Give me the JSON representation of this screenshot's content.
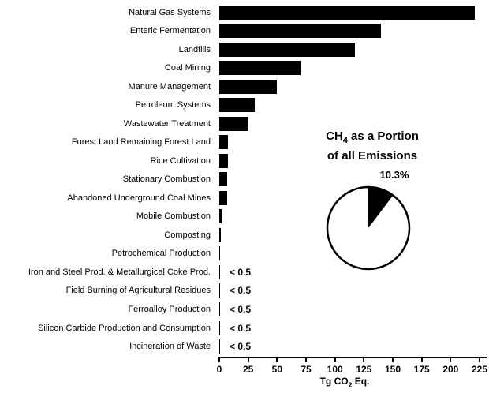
{
  "chart_data": {
    "type": "bar",
    "orientation": "horizontal",
    "categories": [
      "Natural Gas Systems",
      "Enteric Fermentation",
      "Landfills",
      "Coal Mining",
      "Manure Management",
      "Petroleum Systems",
      "Wastewater Treatment",
      "Forest Land Remaining Forest Land",
      "Rice Cultivation",
      "Stationary Combustion",
      "Abandoned Underground Coal Mines",
      "Mobile Combustion",
      "Composting",
      "Petrochemical Production",
      "Iron and Steel Prod. & Metallurgical Coke Prod.",
      "Field Burning of Agricultural Residues",
      "Ferroalloy Production",
      "Silicon Carbide Production and Consumption",
      "Incineration of Waste"
    ],
    "values": [
      221.2,
      139.8,
      117.5,
      71.0,
      49.5,
      30.9,
      24.5,
      7.8,
      7.3,
      6.9,
      6.5,
      2.0,
      1.7,
      0.9,
      0.3,
      0.3,
      0.3,
      0.3,
      0.3
    ],
    "value_annotations": [
      "",
      "",
      "",
      "",
      "",
      "",
      "",
      "",
      "",
      "",
      "",
      "",
      "",
      "",
      "< 0.5",
      "< 0.5",
      "< 0.5",
      "< 0.5",
      "< 0.5"
    ],
    "xlabel": "Tg CO2 Eq.",
    "xlim": [
      0,
      225
    ],
    "xticks": [
      0,
      25,
      50,
      75,
      100,
      125,
      150,
      175,
      200,
      225
    ],
    "grid": false,
    "legend": "none",
    "bar_color": "#000000",
    "pie_inset": {
      "type": "pie",
      "title": "CH4 as a Portion of all Emissions",
      "percent_label": "10.3%",
      "slices": [
        {
          "label": "CH4",
          "percent": 10.3,
          "color": "#000000"
        },
        {
          "label": "All other emissions",
          "percent": 89.7,
          "color": "#ffffff"
        }
      ],
      "outline_color": "#000000"
    }
  },
  "labels": {
    "xaxis_prefix": "Tg CO",
    "xaxis_sub": "2",
    "xaxis_suffix": " Eq.",
    "pie_title_prefix": "CH",
    "pie_title_sub": "4",
    "pie_title_rest": " as a Portion",
    "pie_title_line2": "of all Emissions"
  }
}
